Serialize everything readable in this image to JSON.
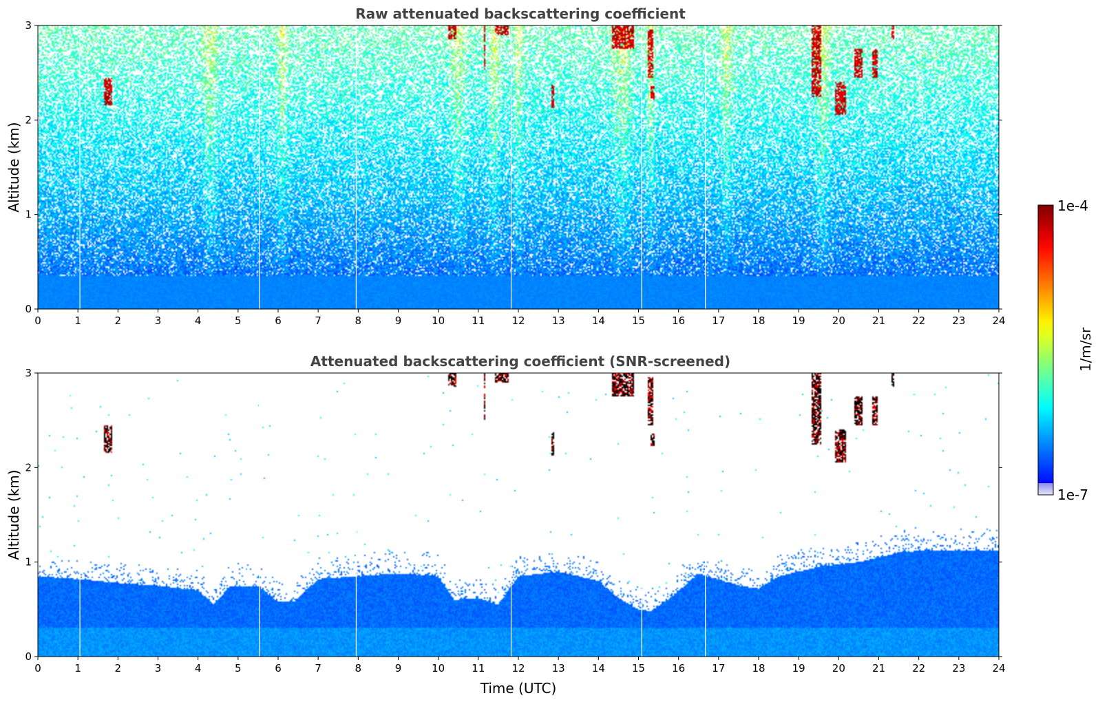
{
  "chart_data": [
    {
      "type": "heatmap",
      "title": "Raw attenuated backscattering coefficient",
      "xlabel": "",
      "ylabel": "Altitude (km)",
      "xlim": [
        0,
        24
      ],
      "ylim": [
        0,
        3
      ],
      "xticks": [
        "0",
        "1",
        "2",
        "3",
        "4",
        "5",
        "6",
        "7",
        "8",
        "9",
        "10",
        "11",
        "12",
        "13",
        "14",
        "15",
        "16",
        "17",
        "18",
        "19",
        "20",
        "21",
        "22",
        "23",
        "24"
      ],
      "yticks": [
        "0",
        "1",
        "2",
        "3"
      ],
      "screened": false
    },
    {
      "type": "heatmap",
      "title": "Attenuated backscattering coefficient (SNR-screened)",
      "xlabel": "Time (UTC)",
      "ylabel": "Altitude (km)",
      "xlim": [
        0,
        24
      ],
      "ylim": [
        0,
        3
      ],
      "xticks": [
        "0",
        "1",
        "2",
        "3",
        "4",
        "5",
        "6",
        "7",
        "8",
        "9",
        "10",
        "11",
        "12",
        "13",
        "14",
        "15",
        "16",
        "17",
        "18",
        "19",
        "20",
        "21",
        "22",
        "23",
        "24"
      ],
      "yticks": [
        "0",
        "1",
        "2",
        "3"
      ],
      "screened": true
    }
  ],
  "colorbar": {
    "label": "1/m/sr",
    "max_label": "1e-4",
    "min_label": "1e-7",
    "scale": "log",
    "colormap": "jet"
  },
  "data_gaps_utc": [
    1.05,
    5.53,
    7.95,
    11.82,
    15.08,
    16.67
  ],
  "boundary_layer_top_km": [
    [
      0,
      0.85
    ],
    [
      1,
      0.82
    ],
    [
      2,
      0.78
    ],
    [
      3,
      0.75
    ],
    [
      4,
      0.7
    ],
    [
      4.4,
      0.55
    ],
    [
      4.8,
      0.75
    ],
    [
      5.5,
      0.75
    ],
    [
      6,
      0.58
    ],
    [
      6.4,
      0.58
    ],
    [
      7,
      0.82
    ],
    [
      8,
      0.85
    ],
    [
      9,
      0.88
    ],
    [
      10,
      0.85
    ],
    [
      10.4,
      0.6
    ],
    [
      11,
      0.62
    ],
    [
      11.5,
      0.55
    ],
    [
      12,
      0.85
    ],
    [
      13,
      0.9
    ],
    [
      14,
      0.8
    ],
    [
      14.5,
      0.62
    ],
    [
      15,
      0.5
    ],
    [
      15.3,
      0.48
    ],
    [
      15.8,
      0.62
    ],
    [
      16.5,
      0.88
    ],
    [
      17.5,
      0.75
    ],
    [
      18,
      0.72
    ],
    [
      18.5,
      0.85
    ],
    [
      19.5,
      0.95
    ],
    [
      20.5,
      1.0
    ],
    [
      21.5,
      1.1
    ],
    [
      22,
      1.12
    ],
    [
      23,
      1.12
    ],
    [
      24,
      1.12
    ]
  ],
  "clouds": [
    {
      "t": 1.75,
      "z_bottom": 2.15,
      "z_top": 2.45,
      "w": 0.22
    },
    {
      "t": 10.35,
      "z_bottom": 2.85,
      "z_top": 3.0,
      "w": 0.2
    },
    {
      "t": 11.6,
      "z_bottom": 2.9,
      "z_top": 3.0,
      "w": 0.35
    },
    {
      "t": 11.15,
      "z_bottom": 2.5,
      "z_top": 3.0,
      "w": 0.05
    },
    {
      "t": 12.85,
      "z_bottom": 2.12,
      "z_top": 2.38,
      "w": 0.08
    },
    {
      "t": 14.6,
      "z_bottom": 2.75,
      "z_top": 3.0,
      "w": 0.55
    },
    {
      "t": 15.3,
      "z_bottom": 2.45,
      "z_top": 2.95,
      "w": 0.15
    },
    {
      "t": 15.35,
      "z_bottom": 2.22,
      "z_top": 2.36,
      "w": 0.08
    },
    {
      "t": 19.45,
      "z_bottom": 2.25,
      "z_top": 3.0,
      "w": 0.25
    },
    {
      "t": 20.05,
      "z_bottom": 2.05,
      "z_top": 2.4,
      "w": 0.3
    },
    {
      "t": 20.5,
      "z_bottom": 2.45,
      "z_top": 2.75,
      "w": 0.2
    },
    {
      "t": 20.9,
      "z_bottom": 2.45,
      "z_top": 2.75,
      "w": 0.15
    },
    {
      "t": 21.35,
      "z_bottom": 2.85,
      "z_top": 3.0,
      "w": 0.06
    }
  ]
}
